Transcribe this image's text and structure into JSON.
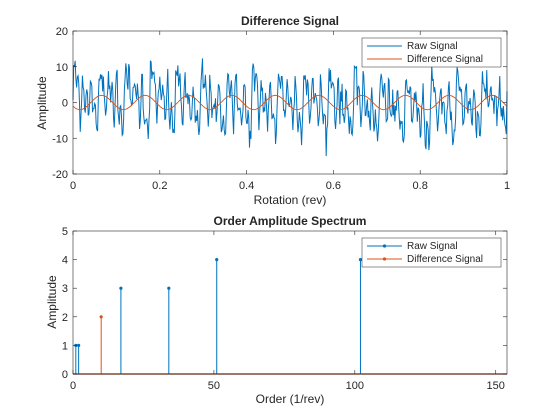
{
  "chart_data": [
    {
      "type": "line",
      "title": "Difference Signal",
      "xlabel": "Rotation (rev)",
      "ylabel": "Amplitude",
      "xlim": [
        0,
        1
      ],
      "ylim": [
        -20,
        20
      ],
      "xticks": [
        0,
        0.2,
        0.4,
        0.6,
        0.8,
        1
      ],
      "xtick_labels": [
        "0",
        "0.2",
        "0.4",
        "0.6",
        "0.8",
        "1"
      ],
      "yticks": [
        -20,
        -10,
        0,
        10,
        20
      ],
      "ytick_labels": [
        "-20",
        "-10",
        "0",
        "10",
        "20"
      ],
      "legend": {
        "placement": "top-right",
        "entries": [
          "Raw Signal",
          "Difference Signal"
        ]
      },
      "series": [
        {
          "name": "Raw Signal",
          "color": "#0072BD",
          "components": [
            {
              "order": 17,
              "amplitude": 3
            },
            {
              "order": 34,
              "amplitude": 3
            },
            {
              "order": 51,
              "amplitude": 4
            },
            {
              "order": 102,
              "amplitude": 4
            },
            {
              "order": 1,
              "amplitude": 1
            },
            {
              "order": 2,
              "amplitude": 1
            }
          ],
          "noise_std": 2.0
        },
        {
          "name": "Difference Signal",
          "color": "#D95319",
          "components": [
            {
              "order": 10,
              "amplitude": 2
            }
          ]
        }
      ]
    },
    {
      "type": "stem",
      "title": "Order Amplitude Spectrum",
      "xlabel": "Order (1/rev)",
      "ylabel": "Amplitude",
      "xlim": [
        0,
        154
      ],
      "ylim": [
        0,
        5
      ],
      "xticks": [
        0,
        50,
        100,
        150
      ],
      "xtick_labels": [
        "0",
        "50",
        "100",
        "150"
      ],
      "yticks": [
        0,
        1,
        2,
        3,
        4,
        5
      ],
      "ytick_labels": [
        "0",
        "1",
        "2",
        "3",
        "4",
        "5"
      ],
      "legend": {
        "placement": "top-right",
        "entries": [
          "Raw Signal",
          "Difference Signal"
        ]
      },
      "series": [
        {
          "name": "Raw Signal",
          "color": "#0072BD",
          "x": [
            1,
            2,
            17,
            34,
            51,
            102
          ],
          "y": [
            1,
            1,
            3,
            3,
            4,
            4
          ]
        },
        {
          "name": "Difference Signal",
          "color": "#D95319",
          "x": [
            10
          ],
          "y": [
            2
          ]
        }
      ]
    }
  ]
}
